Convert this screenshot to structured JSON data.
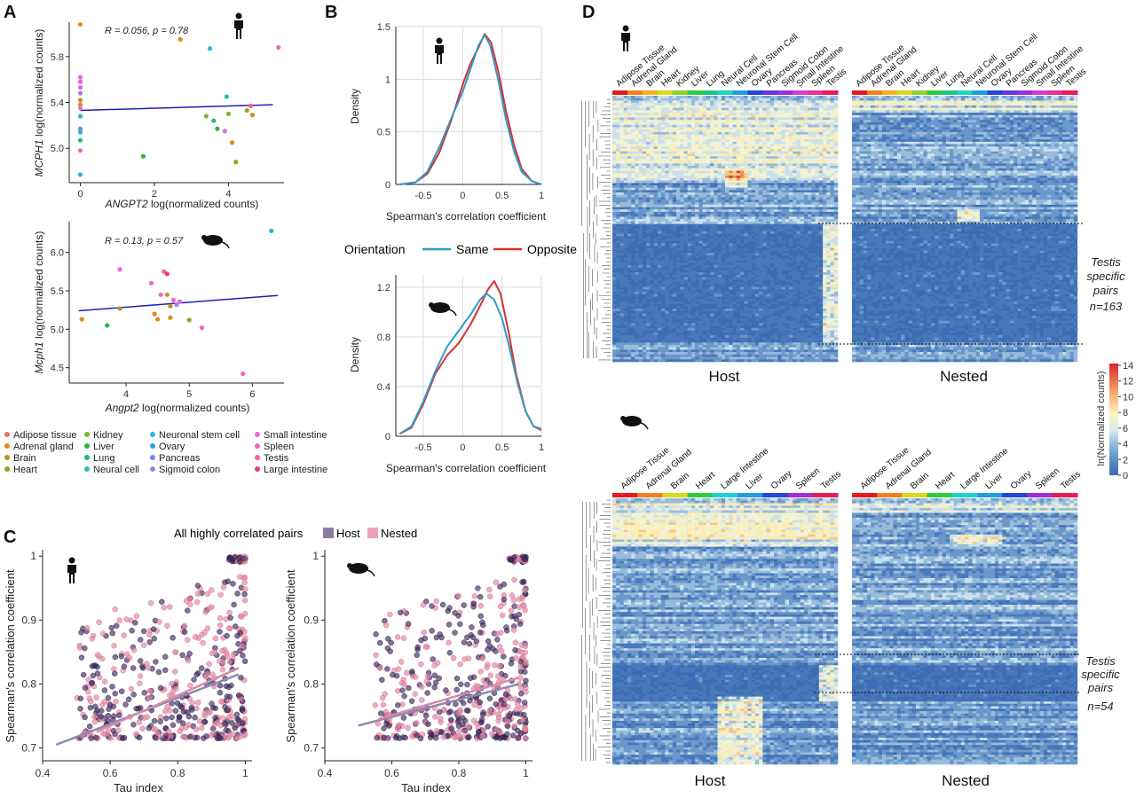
{
  "panels": {
    "a": "A",
    "b": "B",
    "c": "C",
    "d": "D"
  },
  "tissue_colors": {
    "Adipose tissue": "#e8706a",
    "Adrenal gland": "#e08a1c",
    "Brain": "#b9962a",
    "Heart": "#9aa01e",
    "Kidney": "#79b42e",
    "Liver": "#2fb344",
    "Lung": "#2cb37a",
    "Neural cell": "#27bfae",
    "Neuronal stem cell": "#26b8d6",
    "Ovary": "#2ea0e0",
    "Pancreas": "#6a8ee8",
    "Sigmoid colon": "#a27ee8",
    "Small intestine": "#dd6bde",
    "Spleen": "#ee67c4",
    "Testis": "#f05f9a",
    "Large intestine": "#e43c6e"
  },
  "legend_tissues": [
    [
      "Adipose tissue",
      "Adrenal gland",
      "Brain",
      "Heart"
    ],
    [
      "Kidney",
      "Liver",
      "Lung",
      "Neural cell"
    ],
    [
      "Neuronal stem cell",
      "Ovary",
      "Pancreas",
      "Sigmoid colon"
    ],
    [
      "Small intestine",
      "Spleen",
      "Testis",
      "Large intestine"
    ]
  ],
  "panel_a": {
    "human": {
      "stat": "R = 0.056, p = 0.78",
      "ylabel_gene": "MCPH1",
      "ylabel_rest": " log(normalized counts)",
      "xlabel_gene": "ANGPT2",
      "xlabel_rest": " log(normalized counts)",
      "xticks": [
        "0",
        "2",
        "4"
      ],
      "yticks": [
        "5.0",
        "5.4",
        "5.8"
      ],
      "xlim": [
        -0.3,
        5.5
      ],
      "ylim": [
        4.7,
        6.1
      ],
      "trend": [
        [
          0,
          5.33
        ],
        [
          5.2,
          5.38
        ]
      ],
      "points": [
        {
          "x": 0,
          "y": 6.08,
          "t": "Adrenal gland"
        },
        {
          "x": 0,
          "y": 5.62,
          "t": "Small intestine"
        },
        {
          "x": 0,
          "y": 5.58,
          "t": "Small intestine"
        },
        {
          "x": 0,
          "y": 5.53,
          "t": "Spleen"
        },
        {
          "x": 0,
          "y": 5.48,
          "t": "Sigmoid colon"
        },
        {
          "x": 0,
          "y": 5.42,
          "t": "Brain"
        },
        {
          "x": 0,
          "y": 5.38,
          "t": "Adrenal gland"
        },
        {
          "x": 0,
          "y": 5.35,
          "t": "Small intestine"
        },
        {
          "x": 0,
          "y": 5.28,
          "t": "Neuronal stem cell"
        },
        {
          "x": 0,
          "y": 5.17,
          "t": "Pancreas"
        },
        {
          "x": 0,
          "y": 5.14,
          "t": "Neural cell"
        },
        {
          "x": 0,
          "y": 5.07,
          "t": "Lung"
        },
        {
          "x": 0,
          "y": 4.98,
          "t": "Spleen"
        },
        {
          "x": 0,
          "y": 4.77,
          "t": "Neuronal stem cell"
        },
        {
          "x": 1.7,
          "y": 4.93,
          "t": "Liver"
        },
        {
          "x": 2.7,
          "y": 5.95,
          "t": "Adrenal gland"
        },
        {
          "x": 3.4,
          "y": 5.28,
          "t": "Kidney"
        },
        {
          "x": 3.5,
          "y": 5.87,
          "t": "Neuronal stem cell"
        },
        {
          "x": 3.6,
          "y": 5.24,
          "t": "Lung"
        },
        {
          "x": 3.7,
          "y": 5.17,
          "t": "Liver"
        },
        {
          "x": 3.9,
          "y": 5.15,
          "t": "Small intestine"
        },
        {
          "x": 3.95,
          "y": 5.45,
          "t": "Neural cell"
        },
        {
          "x": 4.0,
          "y": 5.3,
          "t": "Kidney"
        },
        {
          "x": 4.1,
          "y": 5.05,
          "t": "Adrenal gland"
        },
        {
          "x": 4.2,
          "y": 4.88,
          "t": "Heart"
        },
        {
          "x": 4.5,
          "y": 5.33,
          "t": "Heart"
        },
        {
          "x": 4.6,
          "y": 5.37,
          "t": "Testis"
        },
        {
          "x": 4.65,
          "y": 5.29,
          "t": "Brain"
        },
        {
          "x": 5.35,
          "y": 5.88,
          "t": "Spleen"
        }
      ]
    },
    "mouse": {
      "stat": "R = 0.13, p = 0.57",
      "ylabel_gene": "Mcph1",
      "ylabel_rest": " log(normalized counts)",
      "xlabel_gene": "Angpt2",
      "xlabel_rest": " log(normalized counts)",
      "xticks": [
        "4",
        "5",
        "6"
      ],
      "yticks": [
        "4.5",
        "5.0",
        "5.5",
        "6.0"
      ],
      "xlim": [
        3.1,
        6.5
      ],
      "ylim": [
        4.3,
        6.4
      ],
      "trend": [
        [
          3.25,
          5.24
        ],
        [
          6.4,
          5.44
        ]
      ],
      "points": [
        {
          "x": 3.3,
          "y": 5.13,
          "t": "Adrenal gland"
        },
        {
          "x": 3.7,
          "y": 5.05,
          "t": "Liver"
        },
        {
          "x": 3.9,
          "y": 5.78,
          "t": "Spleen"
        },
        {
          "x": 3.9,
          "y": 5.27,
          "t": "Brain"
        },
        {
          "x": 4.4,
          "y": 5.6,
          "t": "Spleen"
        },
        {
          "x": 4.45,
          "y": 5.2,
          "t": "Adrenal gland"
        },
        {
          "x": 4.5,
          "y": 5.13,
          "t": "Adrenal gland"
        },
        {
          "x": 4.55,
          "y": 5.45,
          "t": "Spleen"
        },
        {
          "x": 4.6,
          "y": 5.75,
          "t": "Testis"
        },
        {
          "x": 4.65,
          "y": 5.72,
          "t": "Large intestine"
        },
        {
          "x": 4.65,
          "y": 5.45,
          "t": "Brain"
        },
        {
          "x": 4.7,
          "y": 5.3,
          "t": "Brain"
        },
        {
          "x": 4.7,
          "y": 5.15,
          "t": "Adrenal gland"
        },
        {
          "x": 4.75,
          "y": 5.38,
          "t": "Spleen"
        },
        {
          "x": 4.8,
          "y": 5.32,
          "t": "Sigmoid colon"
        },
        {
          "x": 4.85,
          "y": 5.36,
          "t": "Small intestine"
        },
        {
          "x": 5.0,
          "y": 5.12,
          "t": "Heart"
        },
        {
          "x": 5.2,
          "y": 5.02,
          "t": "Spleen"
        },
        {
          "x": 5.85,
          "y": 4.42,
          "t": "Spleen"
        },
        {
          "x": 6.3,
          "y": 6.28,
          "t": "Neuronal stem cell"
        }
      ]
    }
  },
  "panel_b": {
    "xlabel": "Spearman's correlation coefficient",
    "ylabel": "Density",
    "legend_title": "Orientation",
    "legend_same": "Same",
    "legend_opposite": "Opposite",
    "colors": {
      "same": "#2f9bc6",
      "opposite": "#d8322e"
    },
    "xticks": [
      "-0.5",
      "0",
      "0.5",
      "1"
    ],
    "human": {
      "yticks": [
        "0",
        "0.5",
        "1",
        "1.5"
      ],
      "ymax": 1.5,
      "same": [
        [
          -0.8,
          0
        ],
        [
          -0.6,
          0.02
        ],
        [
          -0.45,
          0.12
        ],
        [
          -0.3,
          0.35
        ],
        [
          -0.15,
          0.62
        ],
        [
          0,
          0.88
        ],
        [
          0.1,
          1.1
        ],
        [
          0.2,
          1.32
        ],
        [
          0.28,
          1.42
        ],
        [
          0.35,
          1.32
        ],
        [
          0.45,
          1.0
        ],
        [
          0.55,
          0.62
        ],
        [
          0.65,
          0.32
        ],
        [
          0.75,
          0.12
        ],
        [
          0.88,
          0.03
        ],
        [
          1,
          0
        ]
      ],
      "opposite": [
        [
          -0.8,
          0
        ],
        [
          -0.6,
          0.02
        ],
        [
          -0.45,
          0.1
        ],
        [
          -0.3,
          0.3
        ],
        [
          -0.15,
          0.6
        ],
        [
          0,
          0.95
        ],
        [
          0.1,
          1.15
        ],
        [
          0.2,
          1.3
        ],
        [
          0.28,
          1.43
        ],
        [
          0.36,
          1.35
        ],
        [
          0.46,
          1.05
        ],
        [
          0.55,
          0.7
        ],
        [
          0.65,
          0.38
        ],
        [
          0.75,
          0.15
        ],
        [
          0.88,
          0.03
        ],
        [
          1,
          0
        ]
      ]
    },
    "mouse": {
      "yticks": [
        "0",
        "0.4",
        "0.8",
        "1.2"
      ],
      "ymax": 1.3,
      "same": [
        [
          -0.8,
          0.02
        ],
        [
          -0.65,
          0.08
        ],
        [
          -0.5,
          0.28
        ],
        [
          -0.35,
          0.52
        ],
        [
          -0.2,
          0.72
        ],
        [
          -0.05,
          0.85
        ],
        [
          0.1,
          0.98
        ],
        [
          0.22,
          1.1
        ],
        [
          0.3,
          1.15
        ],
        [
          0.4,
          1.1
        ],
        [
          0.5,
          0.95
        ],
        [
          0.6,
          0.7
        ],
        [
          0.7,
          0.42
        ],
        [
          0.8,
          0.2
        ],
        [
          0.9,
          0.08
        ],
        [
          1,
          0.06
        ]
      ],
      "opposite": [
        [
          -0.8,
          0.02
        ],
        [
          -0.65,
          0.07
        ],
        [
          -0.5,
          0.26
        ],
        [
          -0.35,
          0.5
        ],
        [
          -0.2,
          0.65
        ],
        [
          -0.05,
          0.75
        ],
        [
          0.1,
          0.9
        ],
        [
          0.22,
          1.05
        ],
        [
          0.32,
          1.18
        ],
        [
          0.4,
          1.25
        ],
        [
          0.48,
          1.15
        ],
        [
          0.58,
          0.85
        ],
        [
          0.68,
          0.5
        ],
        [
          0.8,
          0.2
        ],
        [
          0.9,
          0.08
        ],
        [
          1,
          0.05
        ]
      ]
    }
  },
  "panel_c": {
    "legend_title": "All highly correlated pairs",
    "legend_host": "Host",
    "legend_nested": "Nested",
    "colors": {
      "host": "#3d2a5e",
      "nested": "#e58aa6"
    },
    "xlabel": "Tau index",
    "ylabel": "Spearman's correlation coefficient",
    "xticks": [
      "0.4",
      "0.6",
      "0.8",
      "1"
    ],
    "yticks": [
      "0.7",
      "0.8",
      "0.9",
      "1"
    ],
    "xlim": [
      0.4,
      1.02
    ],
    "ylim": [
      0.68,
      1.01
    ],
    "human_trend": {
      "host": [
        [
          0.44,
          0.705
        ],
        [
          0.98,
          0.815
        ]
      ],
      "nested": [
        [
          0.56,
          0.725
        ],
        [
          0.98,
          0.825
        ]
      ]
    },
    "mouse_trend": {
      "host": [
        [
          0.5,
          0.735
        ],
        [
          0.98,
          0.8
        ]
      ],
      "nested": [
        [
          0.56,
          0.745
        ],
        [
          0.98,
          0.81
        ]
      ]
    }
  },
  "panel_d": {
    "human_tissues": [
      "Adipose Tissue",
      "Adrenal Gland",
      "Brain",
      "Heart",
      "Kidney",
      "Liver",
      "Lung",
      "Neural Cell",
      "Neuronal Stem Cell",
      "Ovary",
      "Pancreas",
      "Sigmoid Colon",
      "Small Intestine",
      "Spleen",
      "Testis"
    ],
    "mouse_tissues": [
      "Adipose Tissue",
      "Adrenal Gland",
      "Brain",
      "Heart",
      "Large Intestine",
      "Liver",
      "Ovary",
      "Spleen",
      "Testis"
    ],
    "host_label": "Host",
    "nested_label": "Nested",
    "human_note": [
      "Testis",
      "specific",
      "pairs",
      "n=163"
    ],
    "mouse_note": [
      "Testis",
      "specific",
      "pairs",
      "n=54"
    ],
    "colorbar": {
      "label": "ln(Normalized counts)",
      "ticks": [
        "0",
        "2",
        "4",
        "6",
        "8",
        "10",
        "12",
        "14"
      ]
    }
  }
}
